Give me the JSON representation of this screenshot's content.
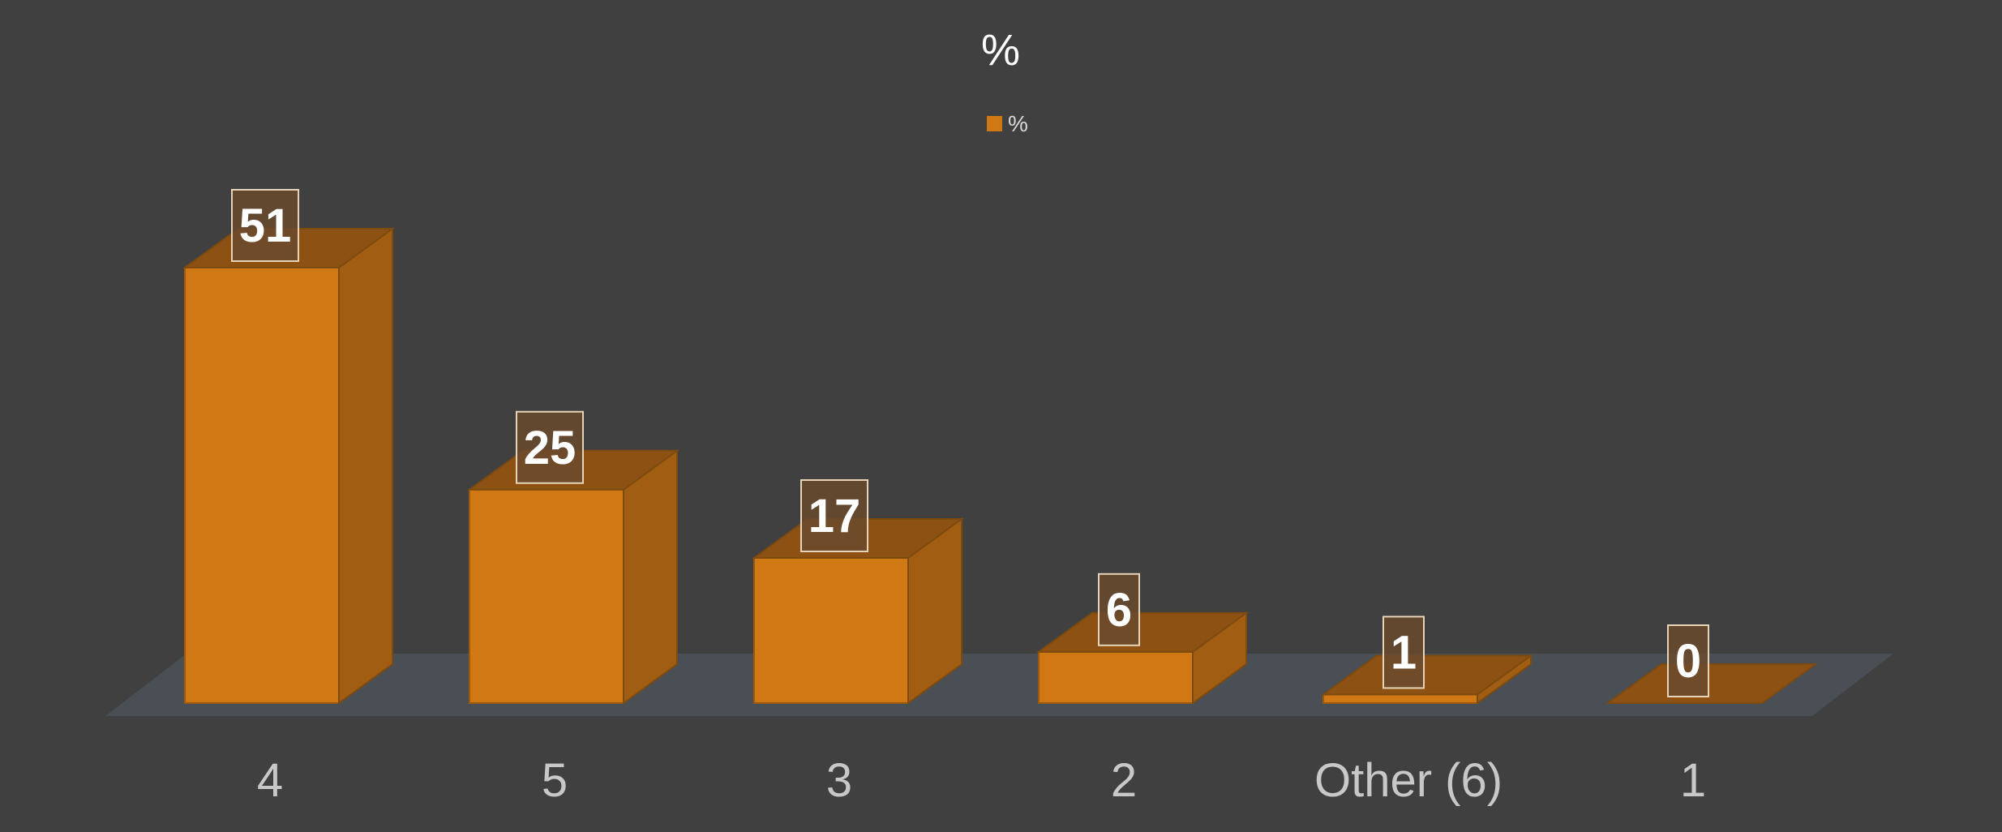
{
  "chart_data": {
    "type": "bar",
    "title": "%",
    "categories": [
      "4",
      "5",
      "3",
      "2",
      "Other (6)",
      "1"
    ],
    "series": [
      {
        "name": "%",
        "values": [
          51,
          25,
          17,
          6,
          1,
          0
        ],
        "color": "#d07814"
      }
    ],
    "data_labels": [
      "51",
      "25",
      "17",
      "6",
      "1",
      "0"
    ],
    "xlabel": "",
    "ylabel": "",
    "ylim": [
      0,
      55
    ],
    "grid": false,
    "legend": {
      "position": "top-center",
      "entries": [
        "%"
      ]
    },
    "style": "3d-column",
    "colors": {
      "background": "#404040",
      "floor": "#4a4f55",
      "bar_front": "#d07814",
      "bar_side": "#a15e12",
      "bar_top": "#8d5213",
      "label_box": "#6a4a2e"
    }
  }
}
